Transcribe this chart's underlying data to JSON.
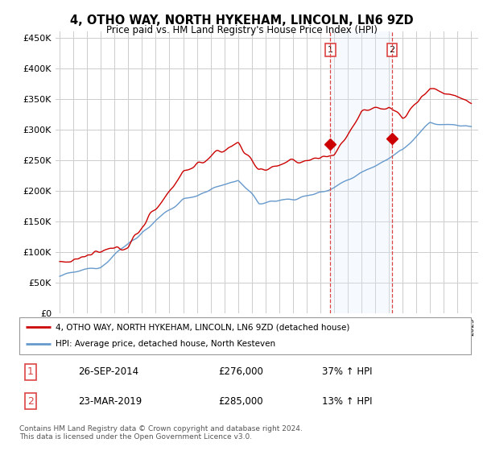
{
  "title": "4, OTHO WAY, NORTH HYKEHAM, LINCOLN, LN6 9ZD",
  "subtitle": "Price paid vs. HM Land Registry's House Price Index (HPI)",
  "ylabel_ticks": [
    "£0",
    "£50K",
    "£100K",
    "£150K",
    "£200K",
    "£250K",
    "£300K",
    "£350K",
    "£400K",
    "£450K"
  ],
  "ytick_values": [
    0,
    50000,
    100000,
    150000,
    200000,
    250000,
    300000,
    350000,
    400000,
    450000
  ],
  "xmin": 1995,
  "xmax": 2025,
  "legend_line1": "4, OTHO WAY, NORTH HYKEHAM, LINCOLN, LN6 9ZD (detached house)",
  "legend_line2": "HPI: Average price, detached house, North Kesteven",
  "line1_color": "#cc0000",
  "line2_color": "#6699cc",
  "marker1_date": 2014.73,
  "marker1_price": 276000,
  "marker2_date": 2019.23,
  "marker2_price": 285000,
  "footer": "Contains HM Land Registry data © Crown copyright and database right 2024.\nThis data is licensed under the Open Government Licence v3.0.",
  "background_color": "#ffffff",
  "plot_bg_color": "#ffffff",
  "grid_color": "#cccccc",
  "span_color": "#ddeeff",
  "vline_color": "#dd4444"
}
